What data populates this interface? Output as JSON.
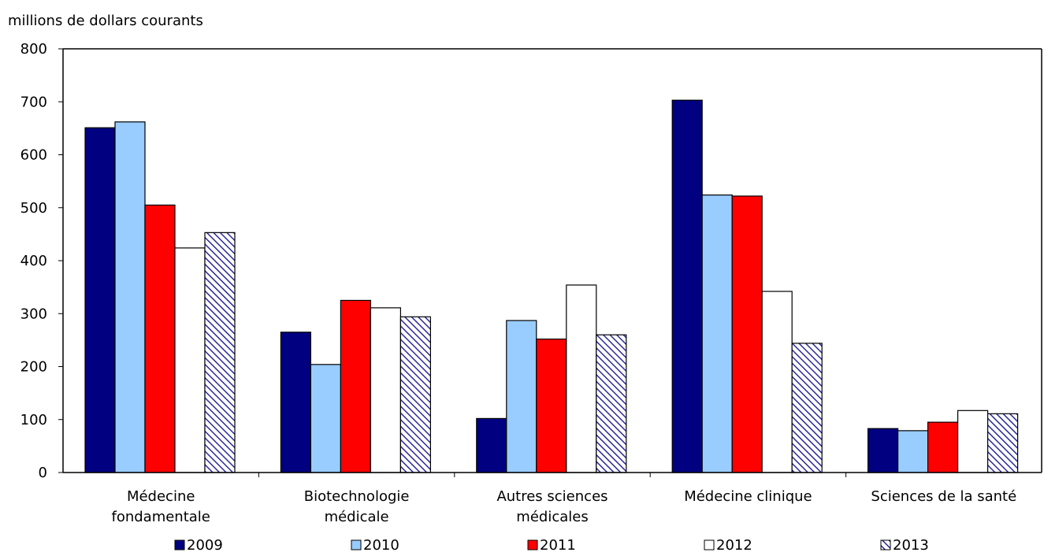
{
  "chart_data": {
    "type": "bar",
    "ylabel": "millions de dollars courants",
    "ylim": [
      0,
      800
    ],
    "yticks": [
      0,
      100,
      200,
      300,
      400,
      500,
      600,
      700,
      800
    ],
    "categories": [
      [
        "Médecine",
        "fondamentale"
      ],
      [
        "Biotechnologie",
        "médicale"
      ],
      [
        "Autres sciences",
        "médicales"
      ],
      [
        "Médecine clinique"
      ],
      [
        "Sciences de la santé"
      ]
    ],
    "series": [
      {
        "name": "2009",
        "color": "#000080",
        "pattern": "solid",
        "values": [
          651,
          265,
          102,
          703,
          83
        ]
      },
      {
        "name": "2010",
        "color": "#99ccff",
        "pattern": "solid",
        "values": [
          662,
          204,
          287,
          524,
          79
        ]
      },
      {
        "name": "2011",
        "color": "#ff0000",
        "pattern": "solid",
        "values": [
          505,
          325,
          252,
          522,
          95
        ]
      },
      {
        "name": "2012",
        "color": "#ffffff",
        "pattern": "solid",
        "values": [
          424,
          311,
          354,
          342,
          117
        ]
      },
      {
        "name": "2013",
        "color": "#2a2a9a",
        "pattern": "hatched",
        "values": [
          453,
          294,
          260,
          244,
          111
        ]
      }
    ],
    "grid": false,
    "legend_position": "bottom"
  }
}
